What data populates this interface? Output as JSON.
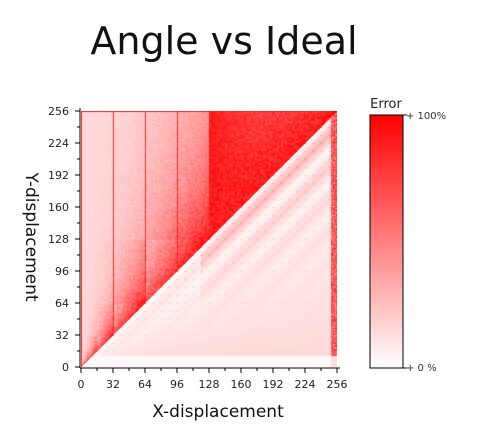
{
  "chart_data": {
    "type": "heatmap",
    "title": "Angle vs Ideal",
    "xlabel": "X-displacement",
    "ylabel": "Y-displacement",
    "xlim": [
      0,
      256
    ],
    "ylim": [
      0,
      256
    ],
    "x_ticks": [
      "0",
      "32",
      "64",
      "96",
      "128",
      "160",
      "192",
      "224",
      "256"
    ],
    "y_ticks": [
      "0",
      "32",
      "64",
      "96",
      "128",
      "160",
      "192",
      "224",
      "256"
    ],
    "x_tick_values": [
      0,
      32,
      64,
      96,
      128,
      160,
      192,
      224,
      256
    ],
    "y_tick_values": [
      0,
      32,
      64,
      96,
      128,
      160,
      192,
      224,
      256
    ],
    "colorbar": {
      "title": "Error",
      "max_label": "+ 100%",
      "min_label": "+ 0 %",
      "min_value": 0,
      "max_value": 100,
      "low_color": "#ffffff",
      "high_color": "#ff0000"
    },
    "grid": false
  }
}
